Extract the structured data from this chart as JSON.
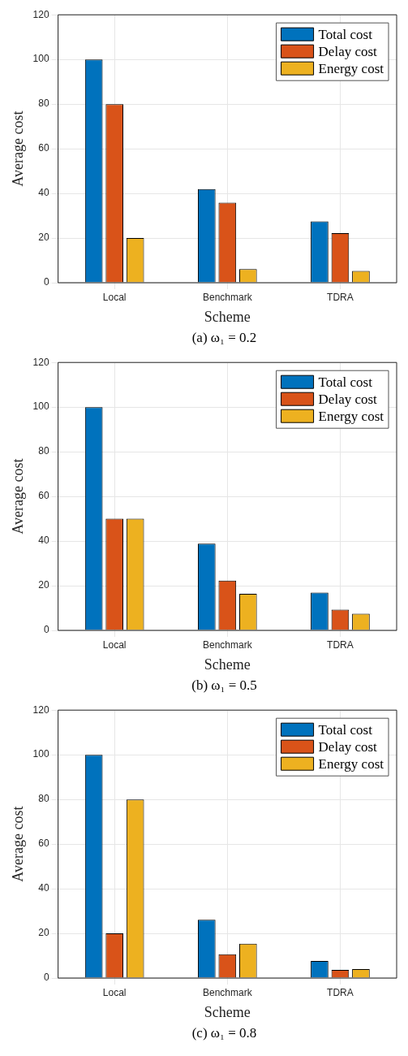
{
  "chart_data": [
    {
      "type": "bar",
      "categories": [
        "Local",
        "Benchmark",
        "TDRA"
      ],
      "xlabel": "Scheme",
      "ylabel": "Average cost",
      "ylim": [
        0,
        120
      ],
      "yticks": [
        0,
        20,
        40,
        60,
        80,
        100,
        120
      ],
      "grid": true,
      "legend": "top right",
      "annotations": [
        "(a) ω₁ = 0.2"
      ],
      "series": [
        {
          "name": "Total cost",
          "color": "#0072bd",
          "values": [
            100,
            41.9,
            27.5
          ]
        },
        {
          "name": "Delay cost",
          "color": "#d95319",
          "values": [
            80,
            35.8,
            22.2
          ]
        },
        {
          "name": "Energy cost",
          "color": "#edb120",
          "values": [
            20,
            6.1,
            5.3
          ]
        }
      ]
    },
    {
      "type": "bar",
      "categories": [
        "Local",
        "Benchmark",
        "TDRA"
      ],
      "xlabel": "Scheme",
      "ylabel": "Average cost",
      "ylim": [
        0,
        120
      ],
      "yticks": [
        0,
        20,
        40,
        60,
        80,
        100,
        120
      ],
      "grid": true,
      "legend": "top right",
      "annotations": [
        "(b) ω₁ = 0.5"
      ],
      "series": [
        {
          "name": "Total cost",
          "color": "#0072bd",
          "values": [
            100,
            38.8,
            16.9
          ]
        },
        {
          "name": "Delay cost",
          "color": "#d95319",
          "values": [
            50,
            22.3,
            9.3
          ]
        },
        {
          "name": "Energy cost",
          "color": "#edb120",
          "values": [
            50,
            16.4,
            7.5
          ]
        }
      ]
    },
    {
      "type": "bar",
      "categories": [
        "Local",
        "Benchmark",
        "TDRA"
      ],
      "xlabel": "Scheme",
      "ylabel": "Average cost",
      "ylim": [
        0,
        120
      ],
      "yticks": [
        0,
        20,
        40,
        60,
        80,
        100,
        120
      ],
      "grid": true,
      "legend": "top right",
      "annotations": [
        "(c) ω₁ = 0.8"
      ],
      "series": [
        {
          "name": "Total cost",
          "color": "#0072bd",
          "values": [
            100,
            26.1,
            7.6
          ]
        },
        {
          "name": "Delay cost",
          "color": "#d95319",
          "values": [
            20,
            10.6,
            3.6
          ]
        },
        {
          "name": "Energy cost",
          "color": "#edb120",
          "values": [
            80,
            15.4,
            4.0
          ]
        }
      ]
    }
  ]
}
